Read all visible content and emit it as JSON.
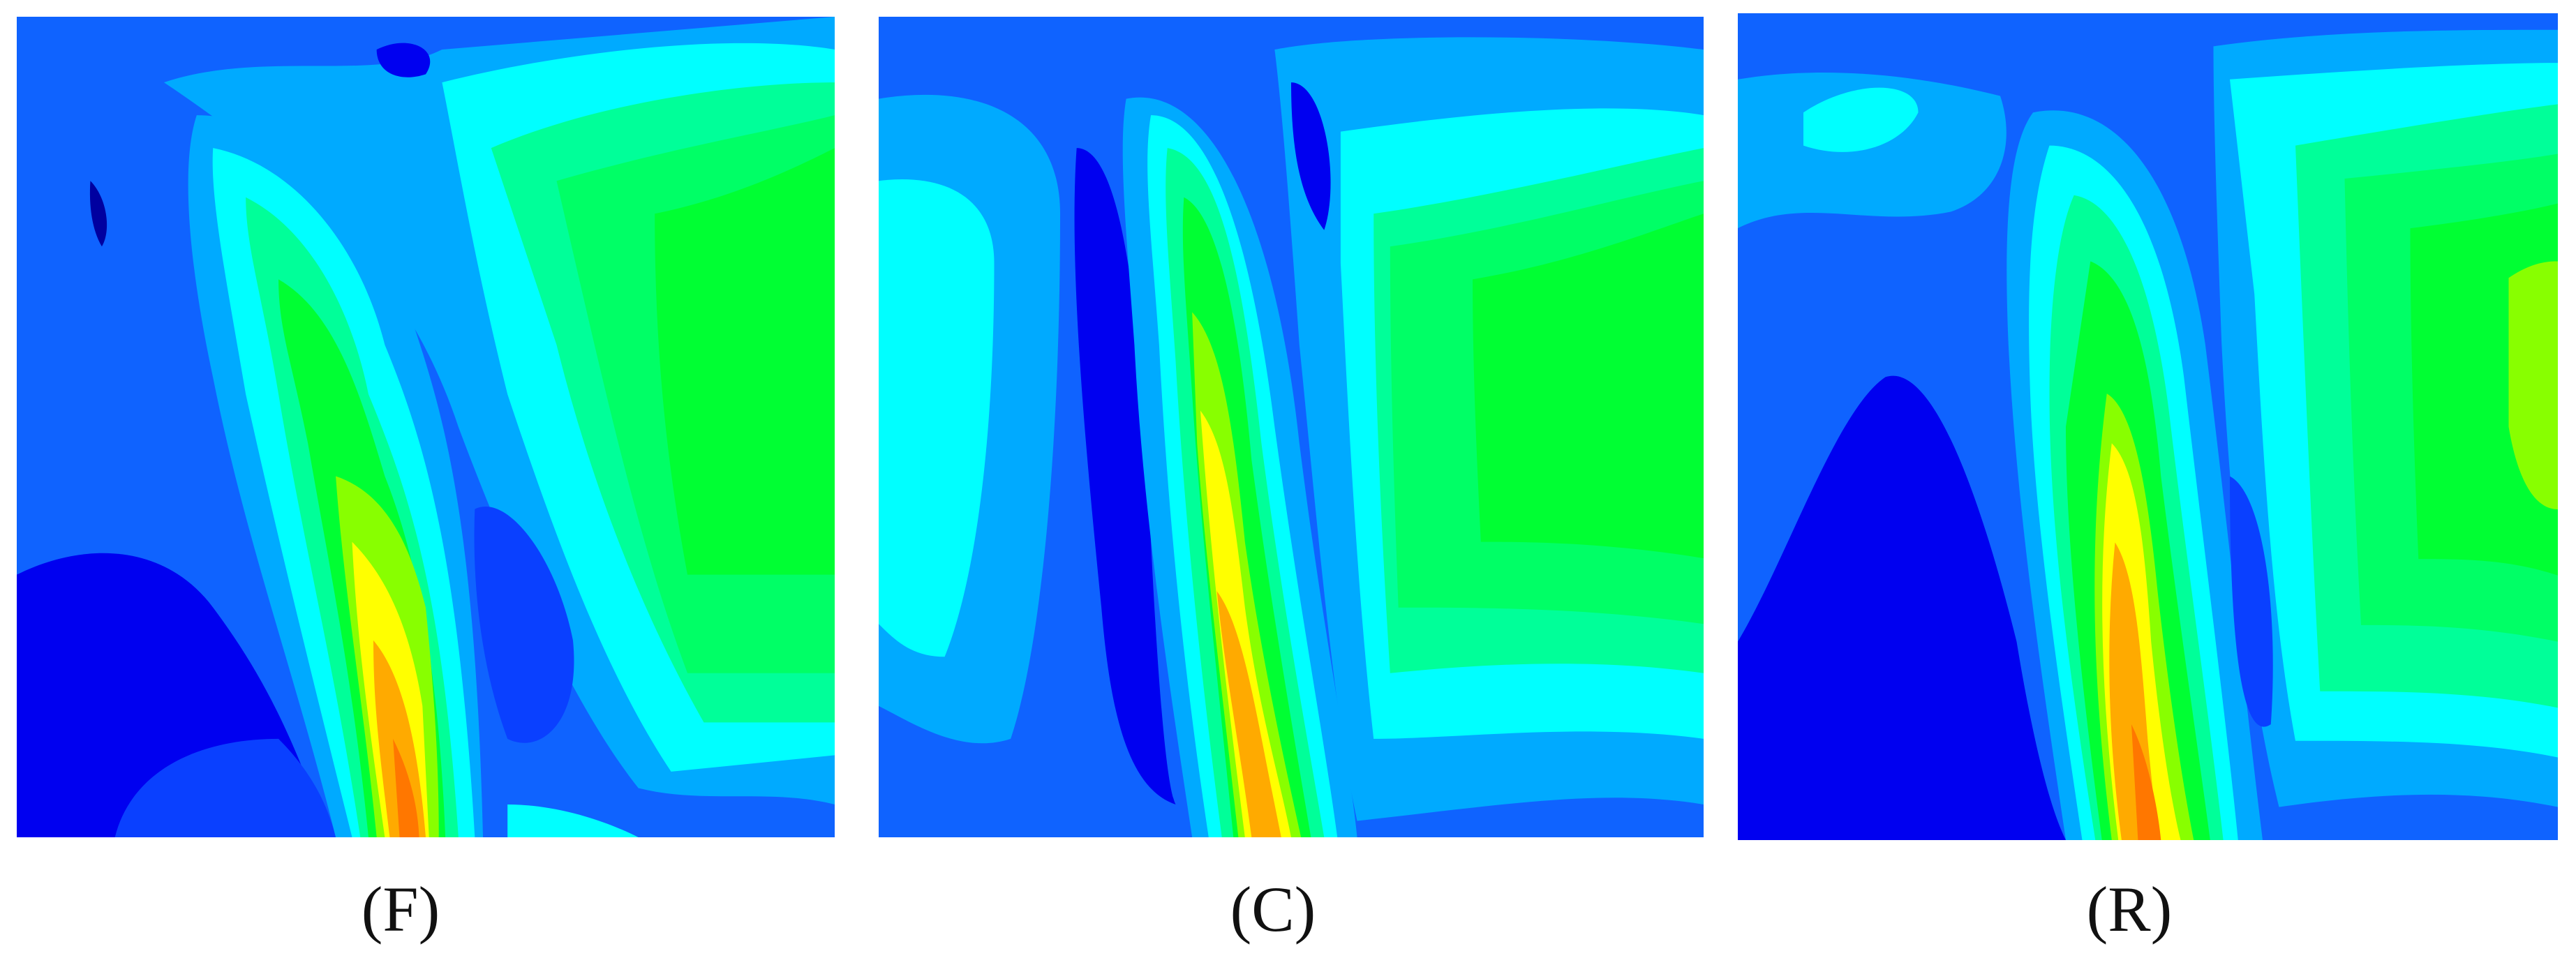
{
  "panels": [
    {
      "label": "(F)"
    },
    {
      "label": "(C)"
    },
    {
      "label": "(R)"
    }
  ]
}
